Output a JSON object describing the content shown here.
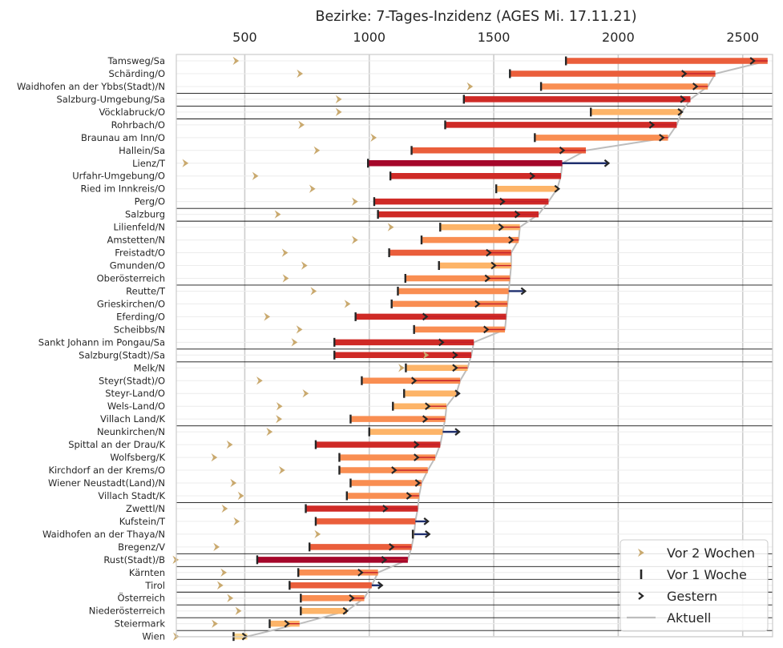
{
  "chart_data": {
    "type": "bar",
    "title": "Bezirke: 7-Tages-Inzidenz (AGES Mi. 17.11.21)",
    "xlabel": "",
    "ylabel": "",
    "xlim": [
      225,
      2620
    ],
    "xticks": [
      500,
      1000,
      1500,
      2000,
      2500
    ],
    "xticks_position": "top",
    "grid": true,
    "legend": {
      "position": "bottom-right",
      "entries": [
        "Vor 2 Wochen",
        "Vor 1 Woche",
        "Gestern",
        "Aktuell"
      ]
    },
    "colors": {
      "vor2": "#c9a96e",
      "vor1": "#262626",
      "gestern": "#262626",
      "aktuell": "#bdbdbd",
      "decrease": "#1f2f6e",
      "ramp": [
        "#fdd58a",
        "#fdb468",
        "#f98e52",
        "#ea5e3b",
        "#cf2a26",
        "#a5072a"
      ]
    },
    "categories": [
      "Tamsweg/Sa",
      "Schärding/O",
      "Waidhofen an der Ybbs(Stadt)/N",
      "Salzburg-Umgebung/Sa",
      "Vöcklabruck/O",
      "Rohrbach/O",
      "Braunau am Inn/O",
      "Hallein/Sa",
      "Lienz/T",
      "Urfahr-Umgebung/O",
      "Ried im Innkreis/O",
      "Perg/O",
      "Salzburg",
      "Lilienfeld/N",
      "Amstetten/N",
      "Freistadt/O",
      "Gmunden/O",
      "Oberösterreich",
      "Reutte/T",
      "Grieskirchen/O",
      "Eferding/O",
      "Scheibbs/N",
      "Sankt Johann im Pongau/Sa",
      "Salzburg(Stadt)/Sa",
      "Melk/N",
      "Steyr(Stadt)/O",
      "Steyr-Land/O",
      "Wels-Land/O",
      "Villach Land/K",
      "Neunkirchen/N",
      "Spittal an der Drau/K",
      "Wolfsberg/K",
      "Kirchdorf an der Krems/O",
      "Wiener Neustadt(Land)/N",
      "Villach Stadt/K",
      "Zwettl/N",
      "Kufstein/T",
      "Waidhofen an der Thaya/N",
      "Bregenz/V",
      "Rust(Stadt)/B",
      "Kärnten",
      "Tirol",
      "Österreich",
      "Niederösterreich",
      "Steiermark",
      "Wien"
    ],
    "state_separator_after": [
      2,
      3,
      4,
      11,
      12,
      17,
      22,
      23,
      28,
      34,
      38,
      39,
      40,
      41,
      42,
      43,
      44
    ],
    "series": [
      {
        "name": "Vor 2 Wochen",
        "values": [
          465,
          722,
          1405,
          878,
          878,
          728,
          1018,
          790,
          262,
          543,
          772,
          943,
          633,
          1087,
          943,
          662,
          740,
          665,
          777,
          913,
          590,
          720,
          700,
          1228,
          1130,
          560,
          745,
          640,
          638,
          600,
          440,
          378,
          650,
          455,
          485,
          420,
          468,
          793,
          387,
          223,
          416,
          402,
          442,
          475,
          380,
          225
        ]
      },
      {
        "name": "Vor 1 Woche",
        "values": [
          1790,
          1565,
          1690,
          1380,
          1890,
          1305,
          1665,
          1170,
          995,
          1085,
          1510,
          1020,
          1035,
          1285,
          1210,
          1080,
          1280,
          1145,
          1115,
          1090,
          945,
          1180,
          860,
          860,
          1147,
          970,
          1140,
          1095,
          925,
          1000,
          785,
          880,
          880,
          925,
          910,
          745,
          785,
          1175,
          760,
          550,
          715,
          680,
          725,
          725,
          600,
          455
        ]
      },
      {
        "name": "Gestern",
        "values": [
          2540,
          2265,
          2310,
          2260,
          2250,
          2135,
          2175,
          1775,
          1955,
          1655,
          1755,
          1535,
          1595,
          1530,
          1570,
          1480,
          1500,
          1475,
          1620,
          1435,
          1225,
          1470,
          1290,
          1345,
          1345,
          1180,
          1355,
          1235,
          1225,
          1355,
          1190,
          1190,
          1100,
          1195,
          1160,
          1065,
          1230,
          1235,
          1090,
          1060,
          965,
          1045,
          930,
          905,
          670,
          500
        ]
      },
      {
        "name": "Aktuell",
        "values": [
          2600,
          2390,
          2360,
          2290,
          2255,
          2235,
          2200,
          1870,
          1775,
          1770,
          1755,
          1720,
          1680,
          1605,
          1600,
          1570,
          1570,
          1565,
          1560,
          1555,
          1550,
          1545,
          1420,
          1410,
          1395,
          1365,
          1350,
          1310,
          1305,
          1295,
          1285,
          1265,
          1235,
          1210,
          1200,
          1195,
          1185,
          1180,
          1170,
          1155,
          1035,
          1010,
          980,
          910,
          720,
          510
        ]
      }
    ]
  }
}
